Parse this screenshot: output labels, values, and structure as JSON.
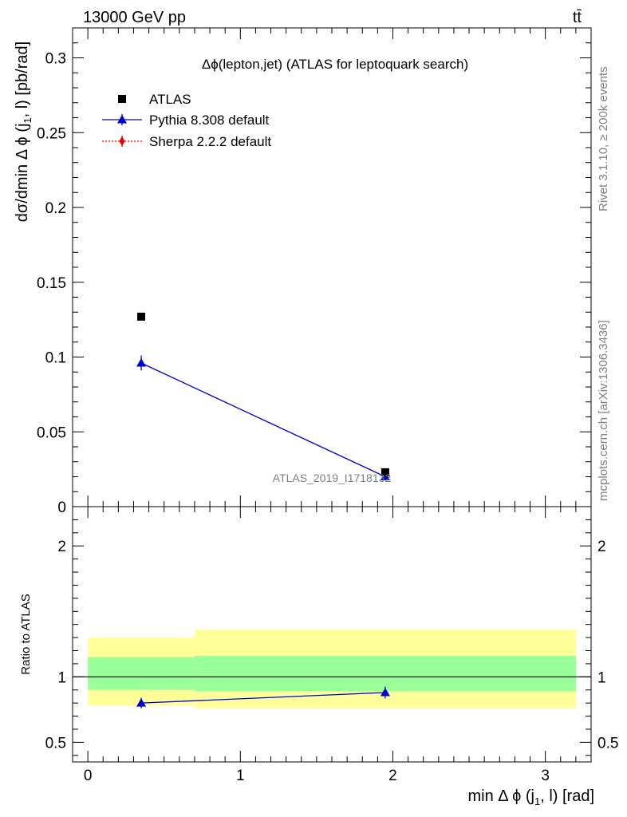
{
  "header": {
    "left": "13000 GeV pp",
    "right": "tt̄"
  },
  "side": {
    "rivet": "Rivet 3.1.10, ≥ 200k events",
    "mcplots": "mcplots.cern.ch [arXiv:1306.3436]"
  },
  "colors": {
    "atlas": "#000000",
    "pythia": "#0000cc",
    "sherpa": "#ee0000",
    "band_inner": "#99ff99",
    "band_outer": "#ffff99"
  },
  "chart_data": [
    {
      "type": "scatter",
      "title": "Δϕ(lepton,jet) (ATLAS for leptoquark search)",
      "watermark": "ATLAS_2019_I1718132",
      "xlabel": "min Δ ϕ (j1, l) [rad]",
      "ylabel": "dσ/dmin Δ ϕ (j1, l) [pb/rad]",
      "xlim": [
        -0.1,
        3.3
      ],
      "ylim": [
        0,
        0.32
      ],
      "yticks": [
        "0",
        "0.05",
        "0.1",
        "0.15",
        "0.2",
        "0.25",
        "0.3"
      ],
      "legend_position": "top-left",
      "series": [
        {
          "name": "ATLAS",
          "marker": "square",
          "x": [
            0.35,
            1.95
          ],
          "y": [
            0.127,
            0.023
          ]
        },
        {
          "name": "Pythia 8.308 default",
          "marker": "triangle",
          "x": [
            0.35,
            1.95
          ],
          "y": [
            0.096,
            0.02
          ],
          "yerr": [
            0.005,
            0.001
          ]
        },
        {
          "name": "Sherpa 2.2.2 default",
          "marker": "diamond",
          "x": [],
          "y": []
        }
      ]
    },
    {
      "type": "line",
      "ylabel": "Ratio to ATLAS",
      "xlim": [
        -0.1,
        3.3
      ],
      "ylim": [
        0.35,
        2.3
      ],
      "xticks": [
        "0",
        "1",
        "2",
        "3"
      ],
      "yticks": [
        "0.5",
        "1",
        "2"
      ],
      "bins": [
        [
          0,
          0.7
        ],
        [
          0.7,
          3.2
        ]
      ],
      "band_inner": [
        [
          0.9,
          1.15
        ],
        [
          0.89,
          1.16
        ]
      ],
      "band_outer": [
        [
          0.78,
          1.3
        ],
        [
          0.76,
          1.36
        ]
      ],
      "series": [
        {
          "name": "Pythia 8.308 default",
          "x": [
            0.35,
            1.95
          ],
          "y": [
            0.8,
            0.88
          ],
          "yerr": [
            0.04,
            0.045
          ]
        }
      ]
    }
  ]
}
